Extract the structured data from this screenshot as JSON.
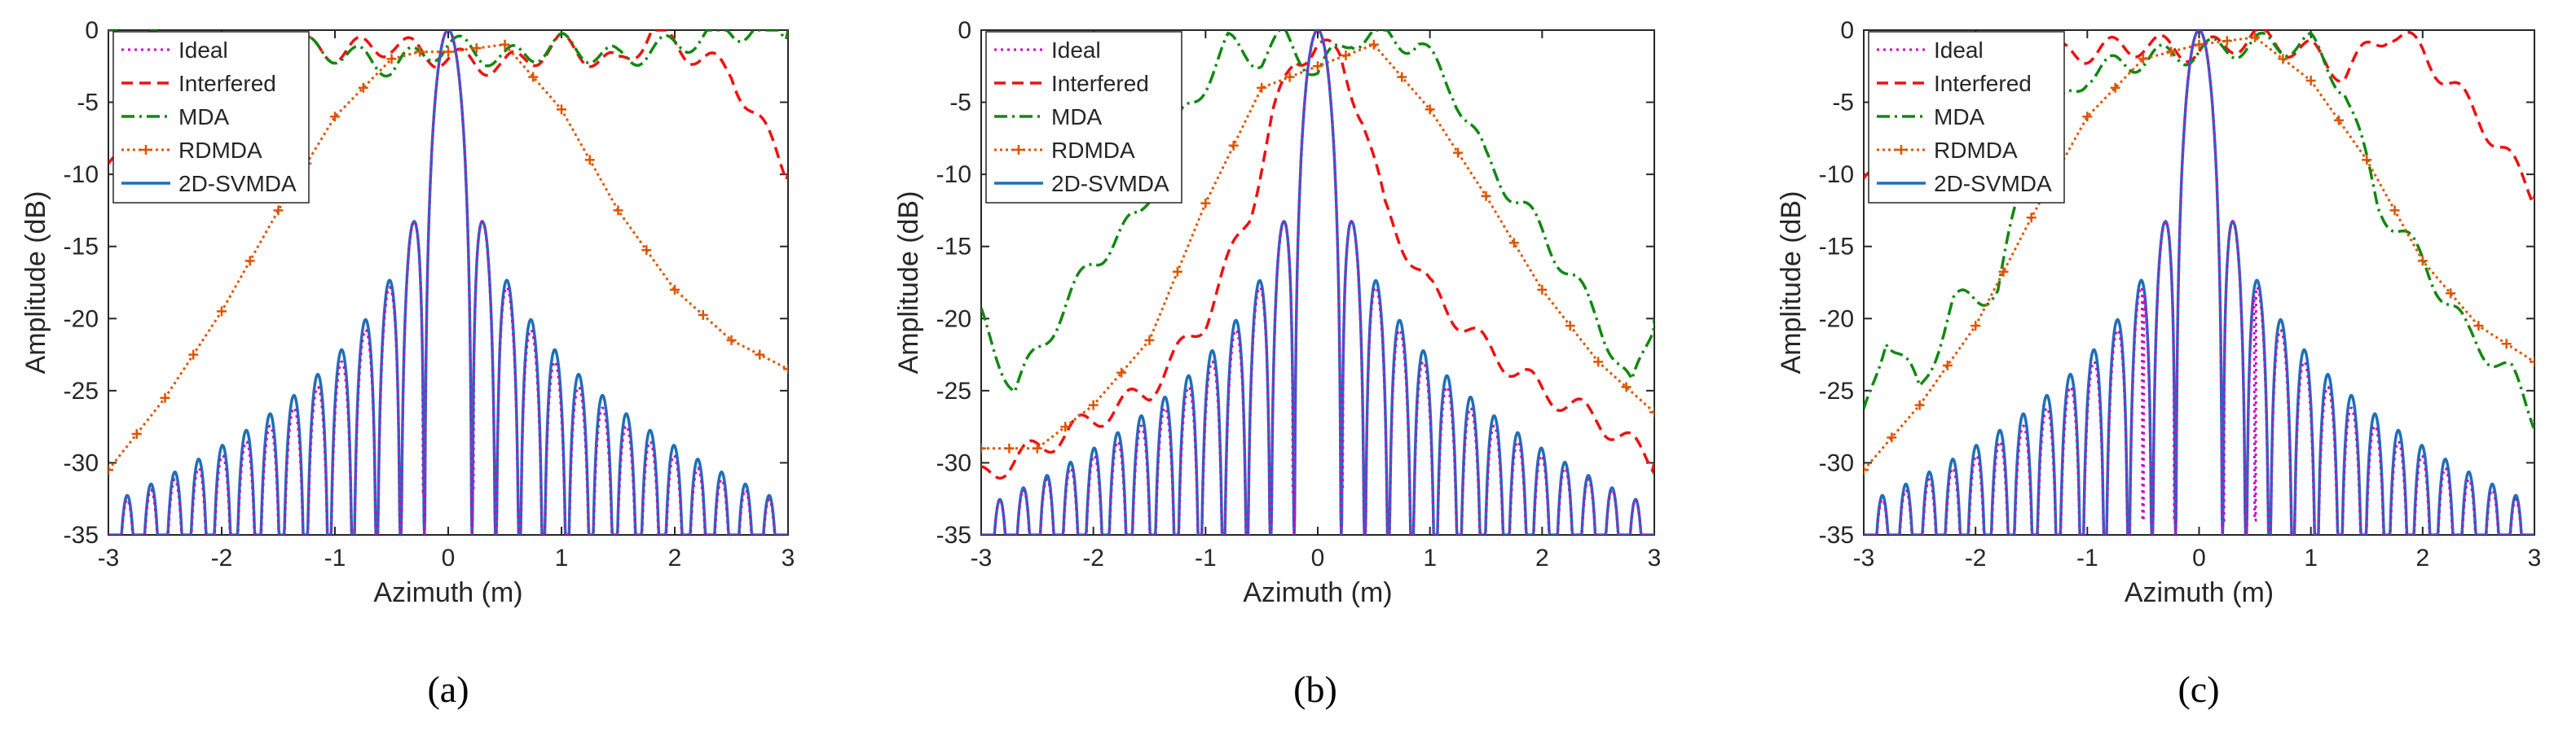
{
  "figure": {
    "panel_labels": [
      "(a)",
      "(b)",
      "(c)"
    ]
  },
  "colors": {
    "Ideal": "#cc00cc",
    "Interfered": "#ee1111",
    "MDA": "#118811",
    "RDMDA": "#dd5500",
    "2D-SVMDA": "#1f6fb8"
  },
  "chart_data": [
    {
      "type": "line",
      "panel": "(a)",
      "xlabel": "Azimuth (m)",
      "ylabel": "Amplitude (dB)",
      "xlim": [
        -3,
        3
      ],
      "ylim": [
        -35,
        0
      ],
      "xticks": [
        -3,
        -2,
        -1,
        0,
        1,
        2,
        3
      ],
      "yticks": [
        0,
        -5,
        -10,
        -15,
        -20,
        -25,
        -30,
        -35
      ],
      "legend": [
        "Ideal",
        "Interfered",
        "MDA",
        "RDMDA",
        "2D-SVMDA"
      ],
      "legend_position": "top-left",
      "series": [
        {
          "name": "Interfered",
          "style": "dashed",
          "x": [
            -3,
            -2.5,
            -2,
            -1.5,
            -1,
            -0.5,
            0,
            0.5,
            1,
            1.5,
            1.8,
            2,
            2.5,
            3
          ],
          "y": [
            -10,
            -1.5,
            -1,
            -1,
            -1.5,
            -1,
            -2,
            -2.5,
            -1,
            -2.5,
            0,
            -1,
            -3,
            -10
          ]
        },
        {
          "name": "MDA",
          "style": "dash-dot",
          "x": [
            -3,
            -2.5,
            -2,
            -1.5,
            -1,
            -0.5,
            0,
            0.5,
            1,
            1.5,
            2,
            2.5,
            3
          ],
          "y": [
            0,
            -1,
            -1.5,
            -1,
            -1.5,
            -2.5,
            -1,
            -2,
            -1,
            -2,
            -1,
            0,
            0
          ]
        },
        {
          "name": "RDMDA",
          "style": "dotted-markers",
          "x": [
            -3,
            -2.5,
            -2,
            -1.5,
            -1,
            -0.5,
            -0.25,
            0,
            0.5,
            1,
            1.5,
            2,
            2.5,
            3
          ],
          "y": [
            -30.5,
            -25.5,
            -19.5,
            -12.5,
            -6,
            -2,
            -1.5,
            -1.5,
            -1,
            -5.5,
            -12.5,
            -18,
            -21.5,
            -23.5
          ]
        },
        {
          "name": "2D-SVMDA",
          "style": "solid",
          "model": "sinc",
          "peak_x": 0,
          "mainlobe_halfwidth": 0.21,
          "first_sidelobe": -13.2,
          "edge_sidelobe": -32
        },
        {
          "name": "Ideal",
          "style": "dotted",
          "model": "sinc",
          "peak_x": 0,
          "mainlobe_halfwidth": 0.21,
          "nulls": [
            -0.22,
            0.22
          ],
          "null_depth": -32
        }
      ]
    },
    {
      "type": "line",
      "panel": "(b)",
      "xlabel": "Azimuth (m)",
      "ylabel": "Amplitude (dB)",
      "xlim": [
        -3,
        3
      ],
      "ylim": [
        -35,
        0
      ],
      "xticks": [
        -3,
        -2,
        -1,
        0,
        1,
        2,
        3
      ],
      "yticks": [
        0,
        -5,
        -10,
        -15,
        -20,
        -25,
        -30,
        -35
      ],
      "legend": [
        "Ideal",
        "Interfered",
        "MDA",
        "RDMDA",
        "2D-SVMDA"
      ],
      "legend_position": "top-left",
      "series": [
        {
          "name": "Interfered",
          "style": "dashed",
          "x": [
            -3,
            -2.5,
            -2,
            -1.5,
            -1,
            -0.6,
            -0.4,
            -0.2,
            0,
            0.2,
            0.4,
            0.6,
            1,
            1.5,
            2,
            2.5,
            3
          ],
          "y": [
            -31,
            -29,
            -27,
            -25,
            -20,
            -12.5,
            -6,
            -2,
            -1,
            -2,
            -6,
            -12.5,
            -18,
            -22,
            -25,
            -27,
            -30
          ]
        },
        {
          "name": "MDA",
          "style": "dash-dot",
          "x": [
            -3,
            -2.7,
            -2.4,
            -2,
            -1.6,
            -1.2,
            -0.8,
            -0.5,
            -0.3,
            0,
            0.3,
            0.6,
            0.9,
            1.2,
            1.5,
            2,
            2.5,
            2.8,
            3
          ],
          "y": [
            -20,
            -25,
            -21,
            -16,
            -13,
            -6,
            -1,
            -2,
            -0.5,
            -3,
            -0.5,
            -0.5,
            -1,
            -4,
            -9,
            -14,
            -20,
            -25,
            -20
          ]
        },
        {
          "name": "RDMDA",
          "style": "dotted-markers",
          "x": [
            -3,
            -2.5,
            -2,
            -1.5,
            -1,
            -0.5,
            0,
            0.5,
            1,
            1.5,
            2,
            2.5,
            3
          ],
          "y": [
            -29,
            -29,
            -26,
            -21.5,
            -12,
            -4,
            -2.5,
            -1,
            -5.5,
            -11.5,
            -18,
            -23,
            -26.5
          ]
        },
        {
          "name": "2D-SVMDA",
          "style": "solid",
          "model": "sinc",
          "peak_x": 0,
          "mainlobe_halfwidth": 0.21,
          "first_sidelobe": -13.2,
          "edge_sidelobe": -34
        },
        {
          "name": "Ideal",
          "style": "dotted",
          "model": "sinc",
          "peak_x": 0,
          "mainlobe_halfwidth": 0.21,
          "nulls": [
            -0.22,
            0.22
          ],
          "null_depth": -32
        }
      ]
    },
    {
      "type": "line",
      "panel": "(c)",
      "xlabel": "Azimuth (m)",
      "ylabel": "Amplitude (dB)",
      "xlim": [
        -3,
        3
      ],
      "ylim": [
        -35,
        0
      ],
      "xticks": [
        -3,
        -2,
        -1,
        0,
        1,
        2,
        3
      ],
      "yticks": [
        0,
        -5,
        -10,
        -15,
        -20,
        -25,
        -30,
        -35
      ],
      "legend": [
        "Ideal",
        "Interfered",
        "MDA",
        "RDMDA",
        "2D-SVMDA"
      ],
      "legend_position": "top-left",
      "series": [
        {
          "name": "Interfered",
          "style": "dashed",
          "x": [
            -3,
            -2.5,
            -2,
            -1.5,
            -1,
            -0.5,
            0,
            0.5,
            1,
            1.3,
            1.7,
            2,
            2.5,
            3
          ],
          "y": [
            -11,
            -3,
            -2.5,
            -2,
            -1.5,
            -1,
            -1.5,
            -0.5,
            -1.5,
            -3,
            0,
            -1.5,
            -6,
            -11.5
          ]
        },
        {
          "name": "MDA",
          "style": "dash-dot",
          "x": [
            -3,
            -2.8,
            -2.5,
            -2.2,
            -1.8,
            -1.5,
            -1,
            -0.5,
            0,
            0.5,
            1,
            1.3,
            1.6,
            2,
            2.4,
            2.8,
            3
          ],
          "y": [
            -27,
            -21,
            -25,
            -19,
            -18,
            -8,
            -3,
            -2,
            -1.5,
            -1,
            -1,
            -4,
            -12,
            -16,
            -21,
            -24,
            -27
          ]
        },
        {
          "name": "RDMDA",
          "style": "dotted-markers",
          "x": [
            -3,
            -2.5,
            -2,
            -1.5,
            -1,
            -0.5,
            0,
            0.5,
            1,
            1.5,
            2,
            2.5,
            3
          ],
          "y": [
            -30.5,
            -26,
            -20.5,
            -13,
            -6,
            -2,
            -1,
            -0.5,
            -3.5,
            -9,
            -16,
            -20.5,
            -23
          ]
        },
        {
          "name": "2D-SVMDA",
          "style": "solid",
          "model": "sinc",
          "peak_x": 0,
          "mainlobe_halfwidth": 0.21,
          "first_sidelobe": -13.2,
          "edge_sidelobe": -32
        },
        {
          "name": "Ideal",
          "style": "dotted",
          "model": "sinc",
          "peak_x": 0,
          "mainlobe_halfwidth": 0.21,
          "nulls": [
            -0.5,
            -0.22,
            0.22,
            0.5
          ],
          "null_depth": -34
        }
      ]
    }
  ]
}
